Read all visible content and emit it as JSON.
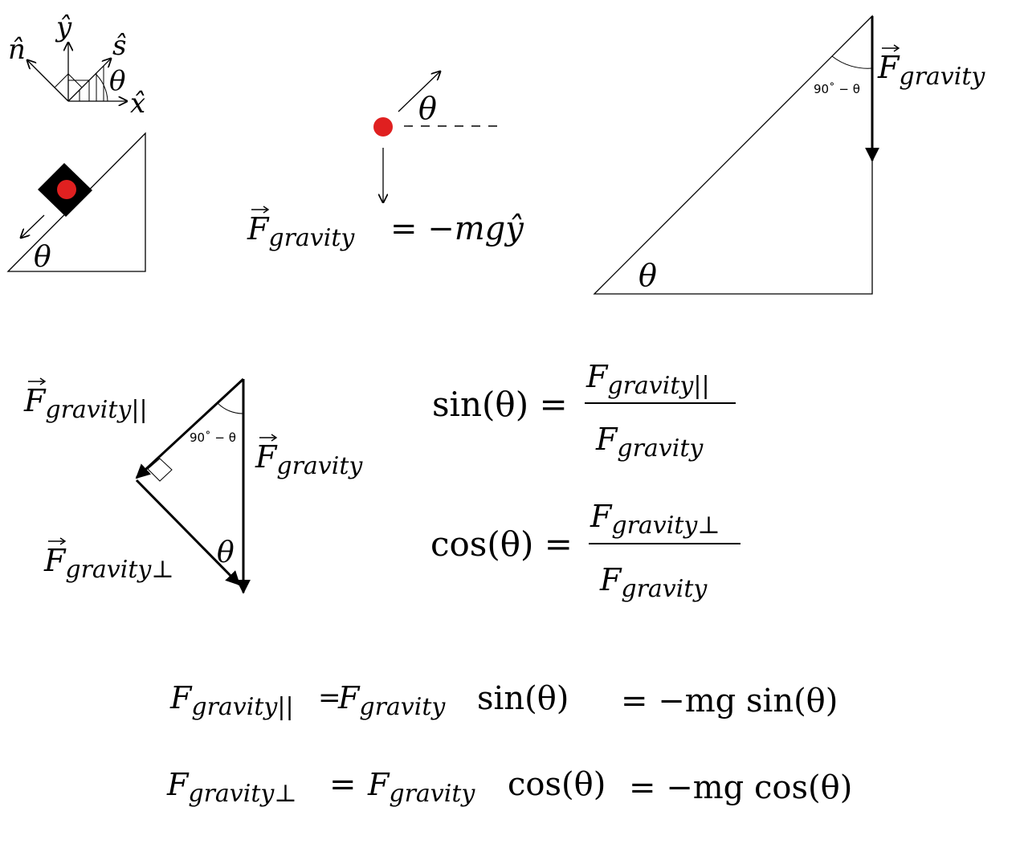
{
  "colors": {
    "ink": "#000000",
    "particle": "#e02020",
    "block": "#000000"
  },
  "axes": {
    "n_label": "n̂",
    "y_label": "ŷ",
    "s_label": "ŝ",
    "x_label": "x̂",
    "theta_label": "θ"
  },
  "incline_small": {
    "theta_label": "θ"
  },
  "particle": {
    "theta_label": "θ",
    "force_lhs": "F",
    "force_sub": "gravity",
    "force_rhs": "= −mgŷ"
  },
  "big_triangle": {
    "theta_label": "θ",
    "angle_label": "90˚ − θ",
    "force_symbol": "F",
    "force_sub": "gravity"
  },
  "force_triangle": {
    "parallel_symbol": "F",
    "parallel_sub": "gravity||",
    "perp_symbol": "F",
    "perp_sub": "gravity⊥",
    "gravity_symbol": "F",
    "gravity_sub": "gravity",
    "angle_label": "90˚ − θ",
    "theta_label": "θ"
  },
  "sin_eq": {
    "lhs": "sin(θ) =",
    "num_symbol": "F",
    "num_sub": "gravity||",
    "den_symbol": "F",
    "den_sub": "gravity"
  },
  "cos_eq": {
    "lhs": "cos(θ) =",
    "num_symbol": "F",
    "num_sub": "gravity⊥",
    "den_symbol": "F",
    "den_sub": "gravity"
  },
  "eq_parallel": {
    "lhs_symbol": "F",
    "lhs_sub": "gravity||",
    "equals1": "=",
    "mid_symbol": "F",
    "mid_sub": "gravity",
    "trig": "sin(θ)",
    "rhs": "= −mg sin(θ)"
  },
  "eq_perp": {
    "lhs_symbol": "F",
    "lhs_sub": "gravity⊥",
    "equals1": "=",
    "mid_symbol": "F",
    "mid_sub": "gravity",
    "trig": "cos(θ)",
    "rhs": "= −mg cos(θ)"
  }
}
